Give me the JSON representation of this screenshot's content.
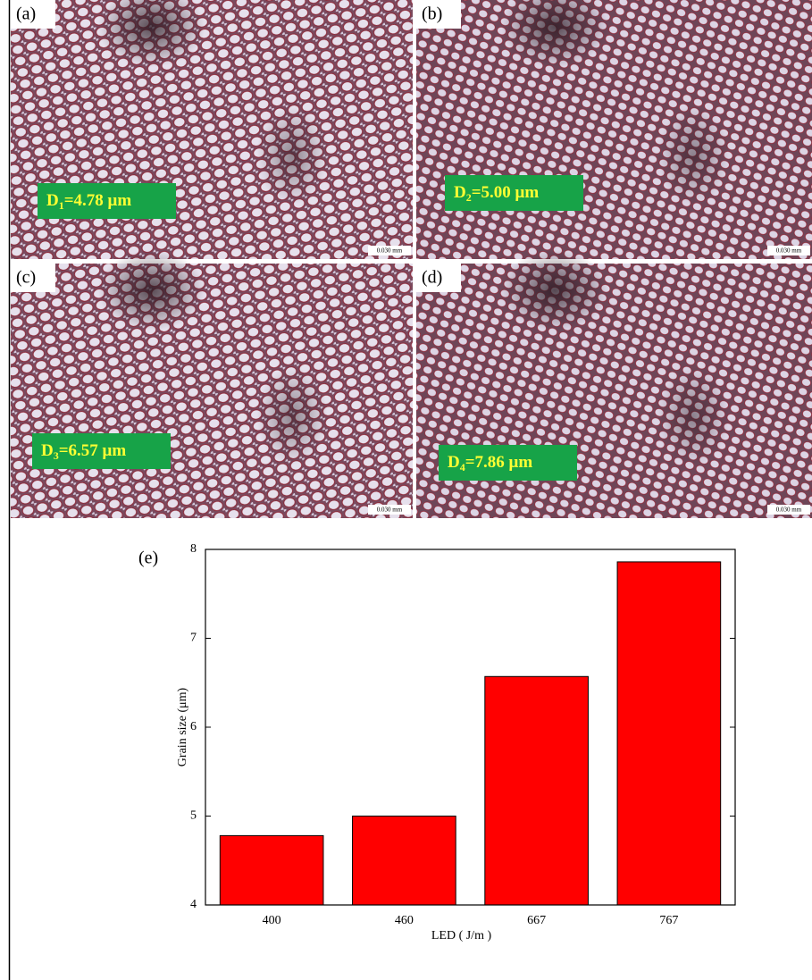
{
  "micrographs": [
    {
      "label": "(a)",
      "symbol": "D",
      "subscript": "1",
      "value_text": "=4.78 μm",
      "scale": "0.030 mm"
    },
    {
      "label": "(b)",
      "symbol": "D",
      "subscript": "2",
      "value_text": "=5.00 μm",
      "scale": "0.030 mm"
    },
    {
      "label": "(c)",
      "symbol": "D",
      "subscript": "3",
      "value_text": "=6.57 μm",
      "scale": "0.030 mm"
    },
    {
      "label": "(d)",
      "symbol": "D",
      "subscript": "4",
      "value_text": "=7.86 μm",
      "scale": "0.030 mm"
    }
  ],
  "chart_label": "(e)",
  "chart_data": {
    "type": "bar",
    "categories": [
      "400",
      "460",
      "667",
      "767"
    ],
    "values": [
      4.78,
      5.0,
      6.57,
      7.86
    ],
    "color": "#ff0000",
    "xlabel": "LED ( J/m )",
    "ylabel": "Grain size (μm)",
    "ylim": [
      4,
      8
    ],
    "yticks": [
      4,
      5,
      6,
      7,
      8
    ]
  }
}
